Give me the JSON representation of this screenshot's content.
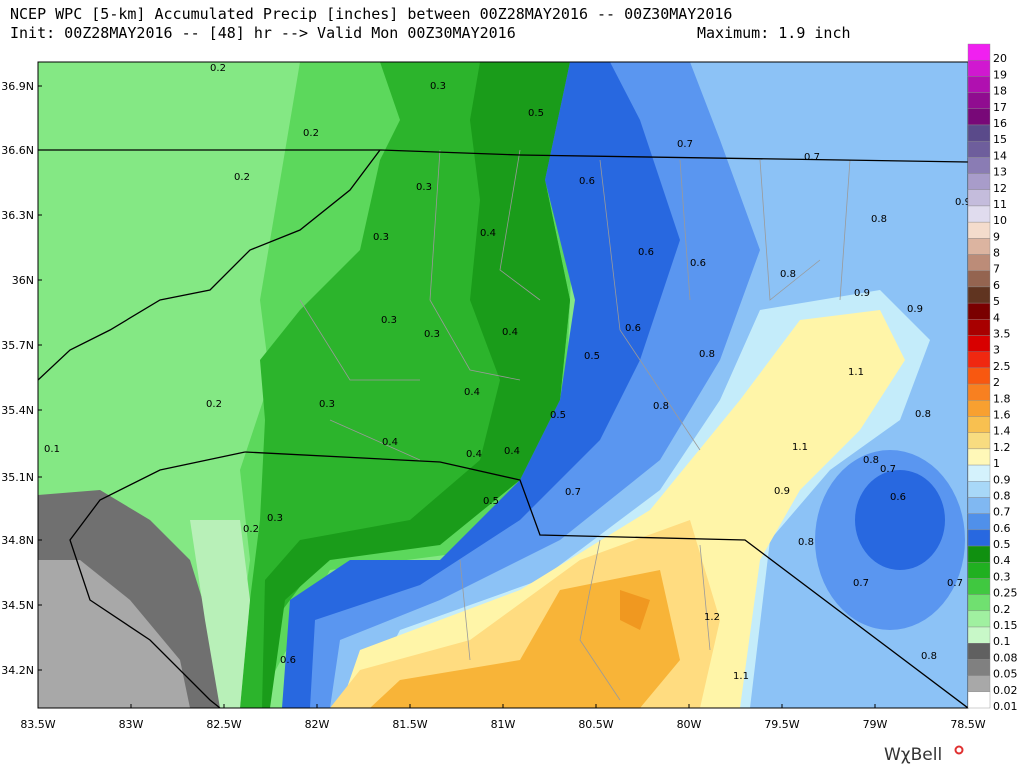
{
  "header": {
    "title": "NCEP WPC [5-km] Accumulated Precip [inches] between 00Z28MAY2016 -- 00Z30MAY2016",
    "init": "Init: 00Z28MAY2016 -- [48] hr --> Valid Mon 00Z30MAY2016",
    "maximum": "Maximum: 1.9 inch"
  },
  "map": {
    "lat_labels": [
      "36.9N",
      "36.6N",
      "36.3N",
      "36N",
      "35.7N",
      "35.4N",
      "35.1N",
      "34.8N",
      "34.5N",
      "34.2N"
    ],
    "lon_labels": [
      "83.5W",
      "83W",
      "82.5W",
      "82W",
      "81.5W",
      "81W",
      "80.5W",
      "80W",
      "79.5W",
      "79W",
      "78.5W"
    ],
    "contour_labels": [
      "0.2",
      "0.3",
      "0.5",
      "0.2",
      "0.7",
      "0.7",
      "0.2",
      "0.3",
      "0.6",
      "0.8",
      "0.9",
      "0.3",
      "0.4",
      "0.6",
      "0.6",
      "0.8",
      "0.9",
      "0.9",
      "0.3",
      "0.3",
      "0.4",
      "0.6",
      "0.5",
      "0.8",
      "1.1",
      "0.2",
      "0.3",
      "0.4",
      "0.5",
      "0.8",
      "0.8",
      "0.1",
      "0.4",
      "0.4",
      "0.4",
      "1.1",
      "0.8",
      "0.7",
      "0.5",
      "0.7",
      "0.9",
      "0.6",
      "0.3",
      "0.2",
      "0.8",
      "0.7",
      "0.7",
      "1.2",
      "0.8",
      "0.6",
      "1.1"
    ]
  },
  "legend": {
    "items": [
      {
        "label": "20",
        "color": "#f020f0"
      },
      {
        "label": "19",
        "color": "#d018d0"
      },
      {
        "label": "18",
        "color": "#b010b0"
      },
      {
        "label": "17",
        "color": "#900c90"
      },
      {
        "label": "16",
        "color": "#780878"
      },
      {
        "label": "15",
        "color": "#5a4a8a"
      },
      {
        "label": "14",
        "color": "#6e5e9c"
      },
      {
        "label": "13",
        "color": "#8a7cb4"
      },
      {
        "label": "12",
        "color": "#a89cca"
      },
      {
        "label": "11",
        "color": "#c4bcdc"
      },
      {
        "label": "10",
        "color": "#e0dcee"
      },
      {
        "label": "9",
        "color": "#f4dccc"
      },
      {
        "label": "8",
        "color": "#dcb4a0"
      },
      {
        "label": "7",
        "color": "#bc8c78"
      },
      {
        "label": "6",
        "color": "#946450"
      },
      {
        "label": "5",
        "color": "#603420"
      },
      {
        "label": "4",
        "color": "#7a0000"
      },
      {
        "label": "3.5",
        "color": "#a80000"
      },
      {
        "label": "3",
        "color": "#d80000"
      },
      {
        "label": "2.5",
        "color": "#f02810"
      },
      {
        "label": "2",
        "color": "#f85810"
      },
      {
        "label": "1.8",
        "color": "#f88020"
      },
      {
        "label": "1.6",
        "color": "#f8a030"
      },
      {
        "label": "1.4",
        "color": "#f8c050"
      },
      {
        "label": "1.2",
        "color": "#f8dc80"
      },
      {
        "label": "1",
        "color": "#fff8b8"
      },
      {
        "label": "0.9",
        "color": "#d4f2fc"
      },
      {
        "label": "0.8",
        "color": "#a8d8f8"
      },
      {
        "label": "0.7",
        "color": "#80b8f2"
      },
      {
        "label": "0.6",
        "color": "#5090ea"
      },
      {
        "label": "0.5",
        "color": "#2868e0"
      },
      {
        "label": "0.4",
        "color": "#109010"
      },
      {
        "label": "0.3",
        "color": "#20b020"
      },
      {
        "label": "0.25",
        "color": "#40c840"
      },
      {
        "label": "0.2",
        "color": "#70e070"
      },
      {
        "label": "0.15",
        "color": "#a0f0a0"
      },
      {
        "label": "0.1",
        "color": "#c8f8c8"
      },
      {
        "label": "0.08",
        "color": "#606060"
      },
      {
        "label": "0.05",
        "color": "#808080"
      },
      {
        "label": "0.02",
        "color": "#a8a8a8"
      },
      {
        "label": "0.01",
        "color": "#ffffff"
      }
    ]
  },
  "brand": "WχBell"
}
